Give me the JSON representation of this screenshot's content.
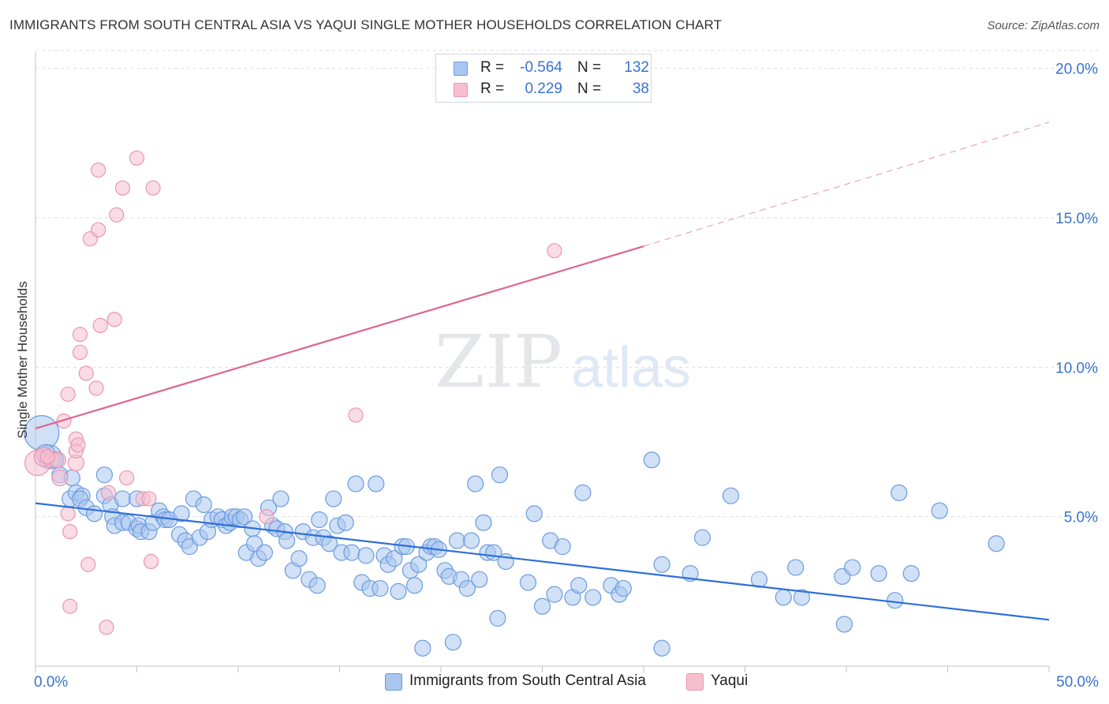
{
  "title": "IMMIGRANTS FROM SOUTH CENTRAL ASIA VS YAQUI SINGLE MOTHER HOUSEHOLDS CORRELATION CHART",
  "source": "Source: ZipAtlas.com",
  "watermark": {
    "zip": "ZIP",
    "atlas": "atlas"
  },
  "colors": {
    "blue_fill": "#a9c6ef",
    "blue_stroke": "#6b9be0",
    "blue_line": "#2e6fd6",
    "pink_fill": "#f6bfd0",
    "pink_stroke": "#ec94b2",
    "pink_line": "#e0648f",
    "tick_text": "#3a73d0",
    "grid": "#d9dde3"
  },
  "stats": {
    "blue": {
      "r_label": "R =",
      "r_value": "-0.564",
      "n_label": "N =",
      "n_value": "132"
    },
    "pink": {
      "r_label": "R =",
      "r_value": "0.229",
      "n_label": "N =",
      "n_value": "38"
    }
  },
  "chart_data": {
    "type": "scatter",
    "title": "IMMIGRANTS FROM SOUTH CENTRAL ASIA VS YAQUI SINGLE MOTHER HOUSEHOLDS CORRELATION CHART",
    "xlabel": "",
    "ylabel": "Single Mother Households",
    "xlim": [
      0,
      50
    ],
    "ylim": [
      0,
      20.6
    ],
    "x_tick_labels": [
      {
        "value": 0,
        "label": "0.0%"
      },
      {
        "value": 50,
        "label": "50.0%"
      }
    ],
    "y_tick_labels": [
      {
        "value": 5,
        "label": "5.0%"
      },
      {
        "value": 10,
        "label": "10.0%"
      },
      {
        "value": 15,
        "label": "15.0%"
      },
      {
        "value": 20,
        "label": "20.0%"
      }
    ],
    "legend": [
      "Immigrants from South Central Asia",
      "Yaqui"
    ],
    "series": [
      {
        "name": "Immigrants from South Central Asia",
        "color": "blue",
        "trend": {
          "x0": 0,
          "y0": 5.45,
          "x1": 50,
          "y1": 1.55
        },
        "points": [
          [
            0.3,
            7.8,
            22
          ],
          [
            0.7,
            7.0,
            15
          ],
          [
            0.5,
            7.1,
            12
          ],
          [
            1.0,
            6.9,
            10
          ],
          [
            1.2,
            6.4,
            10
          ],
          [
            1.0,
            6.9,
            10
          ],
          [
            1.8,
            6.3,
            10
          ],
          [
            1.7,
            5.6,
            10
          ],
          [
            2.0,
            5.8,
            10
          ],
          [
            2.3,
            5.7,
            10
          ],
          [
            2.2,
            5.6,
            10
          ],
          [
            2.5,
            5.3,
            10
          ],
          [
            2.9,
            5.1,
            10
          ],
          [
            3.4,
            5.7,
            10
          ],
          [
            3.4,
            6.4,
            10
          ],
          [
            3.7,
            5.4,
            10
          ],
          [
            3.8,
            5.0,
            10
          ],
          [
            3.9,
            4.7,
            10
          ],
          [
            4.3,
            5.6,
            10
          ],
          [
            4.3,
            4.8,
            10
          ],
          [
            4.6,
            4.8,
            10
          ],
          [
            5.0,
            4.6,
            10
          ],
          [
            5.1,
            4.7,
            10
          ],
          [
            5.2,
            4.5,
            10
          ],
          [
            5.6,
            4.5,
            10
          ],
          [
            5.0,
            5.6,
            10
          ],
          [
            5.8,
            4.8,
            10
          ],
          [
            6.1,
            5.2,
            10
          ],
          [
            6.3,
            5.0,
            10
          ],
          [
            6.4,
            4.9,
            10
          ],
          [
            6.6,
            4.9,
            10
          ],
          [
            7.1,
            4.4,
            10
          ],
          [
            7.2,
            5.1,
            10
          ],
          [
            7.4,
            4.2,
            10
          ],
          [
            7.6,
            4.0,
            10
          ],
          [
            7.8,
            5.6,
            10
          ],
          [
            8.1,
            4.3,
            10
          ],
          [
            8.3,
            5.4,
            10
          ],
          [
            8.5,
            4.5,
            10
          ],
          [
            8.7,
            4.9,
            10
          ],
          [
            9.0,
            5.0,
            10
          ],
          [
            9.2,
            4.9,
            10
          ],
          [
            9.4,
            4.7,
            10
          ],
          [
            9.6,
            4.8,
            10
          ],
          [
            9.7,
            5.0,
            10
          ],
          [
            9.9,
            5.0,
            10
          ],
          [
            10.1,
            4.9,
            10
          ],
          [
            10.3,
            5.0,
            10
          ],
          [
            10.4,
            3.8,
            10
          ],
          [
            10.7,
            4.6,
            10
          ],
          [
            10.8,
            4.1,
            10
          ],
          [
            11.0,
            3.6,
            10
          ],
          [
            11.3,
            3.8,
            10
          ],
          [
            11.5,
            5.3,
            10
          ],
          [
            11.7,
            4.7,
            10
          ],
          [
            11.9,
            4.6,
            10
          ],
          [
            12.1,
            5.6,
            10
          ],
          [
            12.3,
            4.5,
            10
          ],
          [
            12.4,
            4.2,
            10
          ],
          [
            12.7,
            3.2,
            10
          ],
          [
            13.0,
            3.6,
            10
          ],
          [
            13.2,
            4.5,
            10
          ],
          [
            13.5,
            2.9,
            10
          ],
          [
            13.7,
            4.3,
            10
          ],
          [
            13.9,
            2.7,
            10
          ],
          [
            14.0,
            4.9,
            10
          ],
          [
            14.2,
            4.3,
            10
          ],
          [
            14.5,
            4.1,
            10
          ],
          [
            14.7,
            5.6,
            10
          ],
          [
            14.9,
            4.7,
            10
          ],
          [
            15.1,
            3.8,
            10
          ],
          [
            15.3,
            4.8,
            10
          ],
          [
            15.6,
            3.8,
            10
          ],
          [
            15.8,
            6.1,
            10
          ],
          [
            16.1,
            2.8,
            10
          ],
          [
            16.3,
            3.7,
            10
          ],
          [
            16.5,
            2.6,
            10
          ],
          [
            16.8,
            6.1,
            10
          ],
          [
            17.0,
            2.6,
            10
          ],
          [
            17.2,
            3.7,
            10
          ],
          [
            17.4,
            3.4,
            10
          ],
          [
            17.7,
            3.6,
            10
          ],
          [
            17.9,
            2.5,
            10
          ],
          [
            18.1,
            4.0,
            10
          ],
          [
            18.3,
            4.0,
            10
          ],
          [
            18.5,
            3.2,
            10
          ],
          [
            18.7,
            2.7,
            10
          ],
          [
            18.9,
            3.4,
            10
          ],
          [
            19.1,
            0.6,
            10
          ],
          [
            19.3,
            3.8,
            10
          ],
          [
            19.5,
            4.0,
            10
          ],
          [
            19.7,
            4.0,
            10
          ],
          [
            19.9,
            3.9,
            10
          ],
          [
            20.2,
            3.2,
            10
          ],
          [
            20.4,
            3.0,
            10
          ],
          [
            20.6,
            0.8,
            10
          ],
          [
            20.8,
            4.2,
            10
          ],
          [
            21.0,
            2.9,
            10
          ],
          [
            21.3,
            2.6,
            10
          ],
          [
            21.5,
            4.2,
            10
          ],
          [
            21.7,
            6.1,
            10
          ],
          [
            21.9,
            2.9,
            10
          ],
          [
            22.1,
            4.8,
            10
          ],
          [
            22.3,
            3.8,
            10
          ],
          [
            22.6,
            3.8,
            10
          ],
          [
            22.8,
            1.6,
            10
          ],
          [
            22.9,
            6.4,
            10
          ],
          [
            23.2,
            3.5,
            10
          ],
          [
            24.3,
            2.8,
            10
          ],
          [
            24.6,
            5.1,
            10
          ],
          [
            25.0,
            2.0,
            10
          ],
          [
            25.4,
            4.2,
            10
          ],
          [
            25.6,
            2.4,
            10
          ],
          [
            26.0,
            4.0,
            10
          ],
          [
            26.5,
            2.3,
            10
          ],
          [
            26.8,
            2.7,
            10
          ],
          [
            27.0,
            5.8,
            10
          ],
          [
            27.5,
            2.3,
            10
          ],
          [
            28.4,
            2.7,
            10
          ],
          [
            28.8,
            2.4,
            10
          ],
          [
            29.0,
            2.6,
            10
          ],
          [
            30.4,
            6.9,
            10
          ],
          [
            30.9,
            3.4,
            10
          ],
          [
            30.9,
            0.6,
            10
          ],
          [
            32.3,
            3.1,
            10
          ],
          [
            32.9,
            4.3,
            10
          ],
          [
            34.3,
            5.7,
            10
          ],
          [
            35.7,
            2.9,
            10
          ],
          [
            36.9,
            2.3,
            10
          ],
          [
            37.5,
            3.3,
            10
          ],
          [
            37.8,
            2.3,
            10
          ],
          [
            39.8,
            3.0,
            10
          ],
          [
            39.9,
            1.4,
            10
          ],
          [
            40.3,
            3.3,
            10
          ],
          [
            41.6,
            3.1,
            10
          ],
          [
            42.4,
            2.2,
            10
          ],
          [
            42.6,
            5.8,
            10
          ],
          [
            43.2,
            3.1,
            10
          ],
          [
            44.6,
            5.2,
            10
          ],
          [
            47.4,
            4.1,
            10
          ]
        ]
      },
      {
        "name": "Yaqui",
        "color": "pink",
        "trend": {
          "x0": 0,
          "y0": 7.95,
          "x1": 30.0,
          "y1": 14.05,
          "dash_to_x": 50,
          "dash_to_y": 18.2
        },
        "points": [
          [
            0.1,
            6.8,
            16
          ],
          [
            0.4,
            7.0,
            12
          ],
          [
            0.8,
            6.9,
            10
          ],
          [
            1.1,
            6.9,
            10
          ],
          [
            1.2,
            6.3,
            10
          ],
          [
            1.6,
            5.1,
            9
          ],
          [
            1.7,
            4.5,
            9
          ],
          [
            1.7,
            2.0,
            9
          ],
          [
            2.0,
            6.8,
            10
          ],
          [
            2.0,
            7.2,
            9
          ],
          [
            2.0,
            7.6,
            9
          ],
          [
            2.1,
            7.4,
            9
          ],
          [
            1.4,
            8.2,
            9
          ],
          [
            1.6,
            9.1,
            9
          ],
          [
            2.2,
            10.5,
            9
          ],
          [
            2.2,
            11.1,
            9
          ],
          [
            2.5,
            9.8,
            9
          ],
          [
            2.6,
            3.4,
            9
          ],
          [
            2.7,
            14.3,
            9
          ],
          [
            3.0,
            9.3,
            9
          ],
          [
            3.1,
            14.6,
            9
          ],
          [
            3.1,
            16.6,
            9
          ],
          [
            3.2,
            11.4,
            9
          ],
          [
            3.5,
            1.3,
            9
          ],
          [
            3.6,
            5.8,
            9
          ],
          [
            3.9,
            11.6,
            9
          ],
          [
            4.0,
            15.1,
            9
          ],
          [
            4.3,
            16.0,
            9
          ],
          [
            4.5,
            6.3,
            9
          ],
          [
            5.0,
            17.0,
            9
          ],
          [
            5.3,
            5.6,
            9
          ],
          [
            5.6,
            5.6,
            9
          ],
          [
            5.7,
            3.5,
            9
          ],
          [
            5.8,
            16.0,
            9
          ],
          [
            11.4,
            5.0,
            9
          ],
          [
            15.8,
            8.4,
            9
          ],
          [
            25.6,
            13.9,
            9
          ],
          [
            0.6,
            7.0,
            9
          ]
        ]
      }
    ]
  },
  "bottom_legend": {
    "blue_label": "Immigrants from South Central Asia",
    "pink_label": "Yaqui"
  }
}
